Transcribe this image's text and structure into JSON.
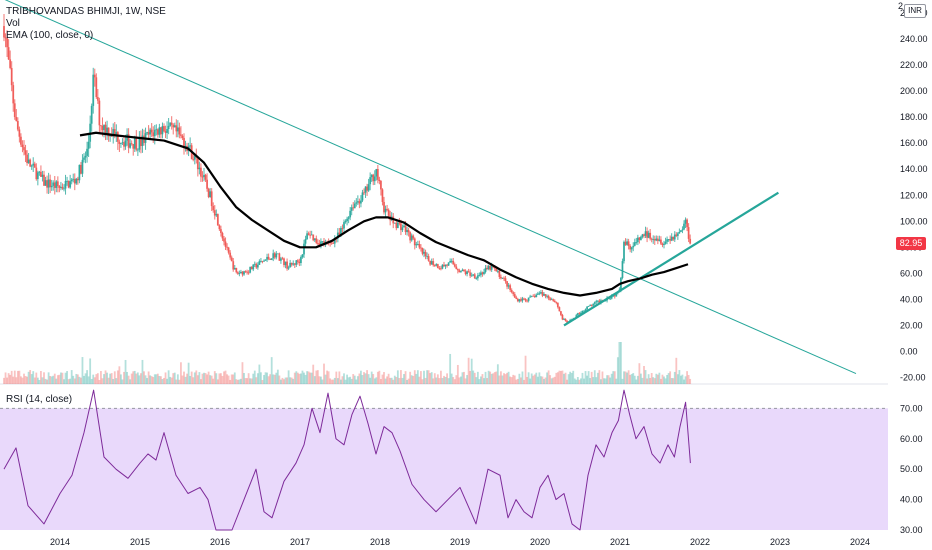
{
  "legend": {
    "title": "TRIBHOVANDAS BHIMJI, 1W, NSE",
    "vol": "Vol",
    "ema": "EMA (100, close, 0)",
    "rsi": "RSI (14, close)"
  },
  "currency": "INR",
  "currency_overlap": "2",
  "last_price": {
    "label": "82.95",
    "value": 82.95,
    "color": "#f23645"
  },
  "colors": {
    "up": "#26a69a",
    "down": "#ef5350",
    "ema": "#000000",
    "trendline": "#26a69a",
    "rsi_line": "#7e2b9a",
    "rsi_band": "#e9d9fb"
  },
  "chart_data": [
    {
      "type": "candlestick",
      "title": "TRIBHOVANDAS BHIMJI, 1W, NSE",
      "ylim": [
        -25,
        270
      ],
      "price_ticks": [
        "-20.00",
        "0.00",
        "20.00",
        "40.00",
        "60.00",
        "80.00",
        "100.00",
        "120.00",
        "140.00",
        "160.00",
        "180.00",
        "200.00",
        "220.00",
        "240.00",
        "260.00"
      ],
      "price_tick_values": [
        -20,
        0,
        20,
        40,
        60,
        80,
        100,
        120,
        140,
        160,
        180,
        200,
        220,
        240,
        260
      ],
      "x_ticks": [
        "2014",
        "2015",
        "2016",
        "2017",
        "2018",
        "2019",
        "2020",
        "2021",
        "2022",
        "2023",
        "2024"
      ],
      "x_tick_values": [
        2014,
        2015,
        2016,
        2017,
        2018,
        2019,
        2020,
        2021,
        2022,
        2023,
        2024
      ],
      "xlim": [
        2013.25,
        2024.35
      ],
      "close_path": {
        "x": [
          2013.3,
          2013.45,
          2013.6,
          2013.8,
          2014.0,
          2014.2,
          2014.35,
          2014.42,
          2014.5,
          2014.65,
          2014.8,
          2015.0,
          2015.15,
          2015.3,
          2015.45,
          2015.6,
          2015.75,
          2015.9,
          2016.0,
          2016.1,
          2016.2,
          2016.35,
          2016.5,
          2016.7,
          2016.85,
          2017.0,
          2017.1,
          2017.2,
          2017.35,
          2017.5,
          2017.65,
          2017.8,
          2017.95,
          2018.05,
          2018.15,
          2018.3,
          2018.45,
          2018.6,
          2018.75,
          2018.9,
          2019.0,
          2019.2,
          2019.4,
          2019.55,
          2019.7,
          2019.85,
          2020.0,
          2020.1,
          2020.2,
          2020.28,
          2020.35,
          2020.5,
          2020.65,
          2020.8,
          2020.95,
          2021.0,
          2021.05,
          2021.15,
          2021.3,
          2021.45,
          2021.55,
          2021.65,
          2021.75,
          2021.82,
          2021.88
        ],
        "y": [
          250,
          175,
          145,
          130,
          126,
          132,
          155,
          212,
          175,
          168,
          162,
          160,
          168,
          172,
          168,
          158,
          140,
          115,
          95,
          75,
          60,
          62,
          68,
          75,
          65,
          70,
          92,
          85,
          82,
          90,
          112,
          120,
          140,
          110,
          100,
          95,
          82,
          70,
          65,
          68,
          62,
          58,
          65,
          55,
          40,
          40,
          45,
          42,
          38,
          25,
          22,
          30,
          36,
          40,
          44,
          50,
          85,
          80,
          90,
          88,
          84,
          88,
          92,
          100,
          83
        ]
      },
      "ema_100": {
        "x": [
          2014.25,
          2014.45,
          2014.7,
          2015.0,
          2015.3,
          2015.6,
          2015.8,
          2016.0,
          2016.2,
          2016.4,
          2016.6,
          2016.8,
          2017.0,
          2017.2,
          2017.4,
          2017.6,
          2017.8,
          2017.95,
          2018.1,
          2018.3,
          2018.5,
          2018.7,
          2018.9,
          2019.1,
          2019.3,
          2019.5,
          2019.7,
          2019.9,
          2020.1,
          2020.3,
          2020.5,
          2020.7,
          2020.9,
          2021.0,
          2021.1,
          2021.25,
          2021.4,
          2021.55,
          2021.7,
          2021.85
        ],
        "y": [
          166,
          168,
          166,
          164,
          162,
          156,
          145,
          127,
          111,
          101,
          93,
          85,
          80,
          80,
          85,
          93,
          100,
          103,
          103,
          99,
          91,
          84,
          79,
          74,
          70,
          63,
          57,
          52,
          48,
          45,
          43,
          45,
          48,
          52,
          54,
          56,
          59,
          61,
          64,
          67
        ]
      },
      "last_close": 82.95,
      "trendlines": [
        {
          "x": [
            2013.25,
            2023.95
          ],
          "y": [
            272,
            -17
          ],
          "color": "#26a69a"
        },
        {
          "x": [
            2020.3,
            2022.98
          ],
          "y": [
            20,
            122
          ],
          "color": "#26a69a"
        }
      ]
    },
    {
      "type": "line",
      "title": "RSI (14, close)",
      "ylim": [
        30,
        78
      ],
      "y_ticks": [
        "30.00",
        "40.00",
        "50.00",
        "60.00",
        "70.00"
      ],
      "y_tick_values": [
        30,
        40,
        50,
        60,
        70
      ],
      "band": [
        30,
        70
      ],
      "x": [
        2013.3,
        2013.45,
        2013.6,
        2013.8,
        2014.0,
        2014.15,
        2014.3,
        2014.42,
        2014.55,
        2014.7,
        2014.85,
        2015.0,
        2015.1,
        2015.2,
        2015.3,
        2015.45,
        2015.6,
        2015.75,
        2015.85,
        2015.95,
        2016.05,
        2016.15,
        2016.3,
        2016.45,
        2016.55,
        2016.65,
        2016.8,
        2016.95,
        2017.05,
        2017.15,
        2017.25,
        2017.35,
        2017.45,
        2017.55,
        2017.65,
        2017.75,
        2017.85,
        2017.95,
        2018.05,
        2018.15,
        2018.25,
        2018.4,
        2018.55,
        2018.7,
        2018.85,
        2019.0,
        2019.1,
        2019.2,
        2019.35,
        2019.5,
        2019.6,
        2019.7,
        2019.8,
        2019.9,
        2020.0,
        2020.1,
        2020.2,
        2020.3,
        2020.4,
        2020.5,
        2020.6,
        2020.7,
        2020.8,
        2020.9,
        2020.98,
        2021.05,
        2021.12,
        2021.2,
        2021.3,
        2021.4,
        2021.5,
        2021.6,
        2021.68,
        2021.75,
        2021.82,
        2021.88
      ],
      "y": [
        50,
        57,
        38,
        32,
        42,
        48,
        62,
        76,
        54,
        50,
        47,
        52,
        55,
        53,
        62,
        48,
        42,
        44,
        40,
        30,
        30,
        30,
        40,
        50,
        36,
        34,
        46,
        52,
        58,
        70,
        62,
        75,
        60,
        58,
        68,
        74,
        65,
        55,
        64,
        62,
        56,
        45,
        40,
        36,
        40,
        44,
        38,
        32,
        50,
        48,
        34,
        40,
        36,
        34,
        44,
        48,
        40,
        42,
        32,
        30,
        48,
        58,
        54,
        62,
        66,
        76,
        68,
        60,
        64,
        55,
        52,
        58,
        54,
        64,
        72,
        52
      ]
    }
  ]
}
